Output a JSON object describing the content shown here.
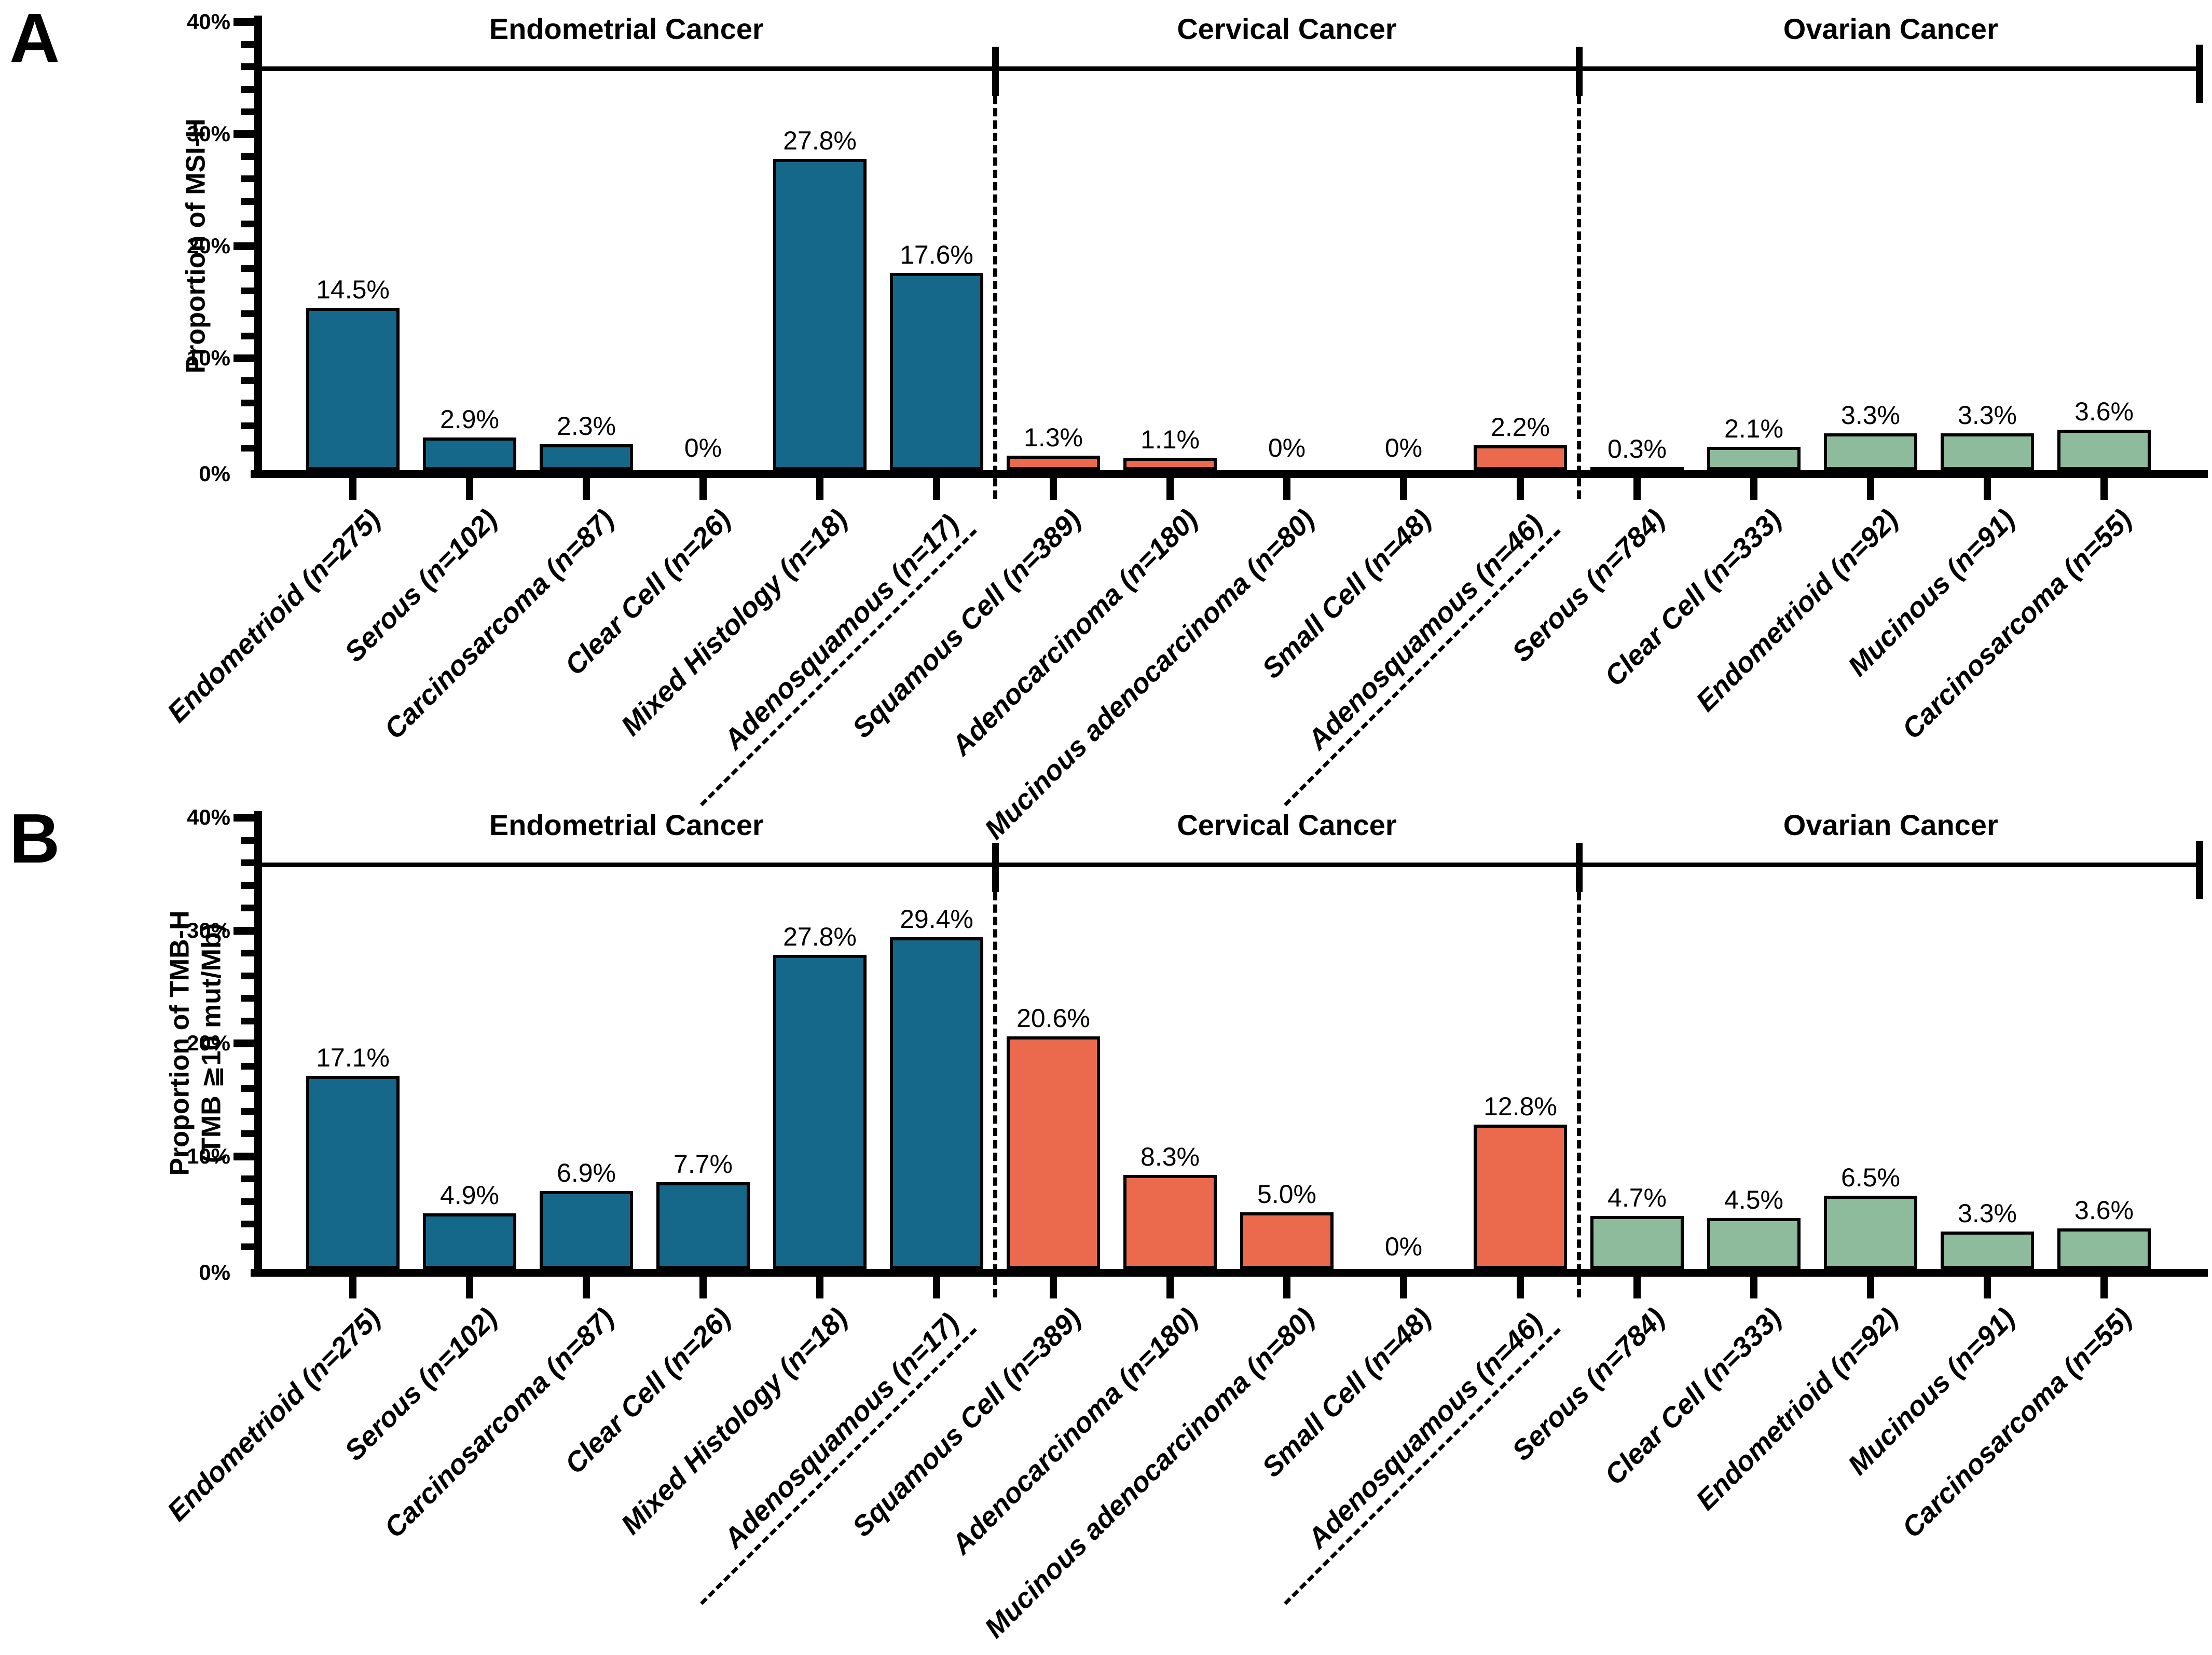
{
  "styles": {
    "background": "#FFFFFF",
    "axis_color": "#000000",
    "bar_colors": {
      "endometrial": "#15688A",
      "cervical": "#EB6A4D",
      "ovarian": "#8DBB9C"
    }
  },
  "chart_data": [
    {
      "panel_label": "A",
      "type": "bar",
      "title": "",
      "xlabel": "",
      "ylabel": "Proportion of MSI-H",
      "ylabel_display": "Proportion of MSI-H",
      "ylim": [
        0,
        40
      ],
      "ytick_labels": [
        "0%",
        "10%",
        "20%",
        "30%",
        "40%"
      ],
      "ytick_values": [
        0,
        10,
        20,
        30,
        40
      ],
      "minor_tick_step": 2,
      "grid": false,
      "legend": "none",
      "group_header_line_at_pct": 36,
      "groups": [
        {
          "name": "Endometrial Cancer",
          "color": "#15688A",
          "bars": [
            {
              "category": "Endometrioid (n=275)",
              "value": 14.5,
              "label": "14.5%"
            },
            {
              "category": "Serous (n=102)",
              "value": 2.9,
              "label": "2.9%"
            },
            {
              "category": "Carcinosarcoma (n=87)",
              "value": 2.3,
              "label": "2.3%"
            },
            {
              "category": "Clear Cell (n=26)",
              "value": 0,
              "label": "0%"
            },
            {
              "category": "Mixed Histology (n=18)",
              "value": 27.8,
              "label": "27.8%"
            },
            {
              "category": "Adenosquamous (n=17)",
              "value": 17.6,
              "label": "17.6%",
              "underlined": true
            }
          ]
        },
        {
          "name": "Cervical Cancer",
          "color": "#EB6A4D",
          "bars": [
            {
              "category": "Squamous Cell (n=389)",
              "value": 1.3,
              "label": "1.3%"
            },
            {
              "category": "Adenocarcinoma (n=180)",
              "value": 1.1,
              "label": "1.1%"
            },
            {
              "category": "Mucinous adenocarcinoma (n=80)",
              "value": 0,
              "label": "0%"
            },
            {
              "category": "Small Cell (n=48)",
              "value": 0,
              "label": "0%"
            },
            {
              "category": "Adenosquamous (n=46)",
              "value": 2.2,
              "label": "2.2%",
              "underlined": true
            }
          ]
        },
        {
          "name": "Ovarian Cancer",
          "color": "#8DBB9C",
          "bars": [
            {
              "category": "Serous (n=784)",
              "value": 0.3,
              "label": "0.3%"
            },
            {
              "category": "Clear Cell (n=333)",
              "value": 2.1,
              "label": "2.1%"
            },
            {
              "category": "Endometrioid (n=92)",
              "value": 3.3,
              "label": "3.3%"
            },
            {
              "category": "Mucinous (n=91)",
              "value": 3.3,
              "label": "3.3%"
            },
            {
              "category": "Carcinosarcoma (n=55)",
              "value": 3.6,
              "label": "3.6%"
            }
          ]
        }
      ]
    },
    {
      "panel_label": "B",
      "type": "bar",
      "title": "",
      "xlabel": "",
      "ylabel": "Proportion of TMB-H (TMB ≧10 mut/Mb)",
      "ylabel_display": "Proportion of TMB-H\n(TMB ≧10 mut/Mb)",
      "ylim": [
        0,
        40
      ],
      "ytick_labels": [
        "0%",
        "10%",
        "20%",
        "30%",
        "40%"
      ],
      "ytick_values": [
        0,
        10,
        20,
        30,
        40
      ],
      "minor_tick_step": 2,
      "grid": false,
      "legend": "none",
      "group_header_line_at_pct": 36,
      "groups": [
        {
          "name": "Endometrial Cancer",
          "color": "#15688A",
          "bars": [
            {
              "category": "Endometrioid (n=275)",
              "value": 17.1,
              "label": "17.1%"
            },
            {
              "category": "Serous (n=102)",
              "value": 4.9,
              "label": "4.9%"
            },
            {
              "category": "Carcinosarcoma (n=87)",
              "value": 6.9,
              "label": "6.9%"
            },
            {
              "category": "Clear Cell (n=26)",
              "value": 7.7,
              "label": "7.7%"
            },
            {
              "category": "Mixed Histology (n=18)",
              "value": 27.8,
              "label": "27.8%"
            },
            {
              "category": "Adenosquamous (n=17)",
              "value": 29.4,
              "label": "29.4%",
              "underlined": true
            }
          ]
        },
        {
          "name": "Cervical Cancer",
          "color": "#EB6A4D",
          "bars": [
            {
              "category": "Squamous Cell (n=389)",
              "value": 20.6,
              "label": "20.6%"
            },
            {
              "category": "Adenocarcinoma (n=180)",
              "value": 8.3,
              "label": "8.3%"
            },
            {
              "category": "Mucinous adenocarcinoma (n=80)",
              "value": 5.0,
              "label": "5.0%"
            },
            {
              "category": "Small Cell (n=48)",
              "value": 0,
              "label": "0%"
            },
            {
              "category": "Adenosquamous (n=46)",
              "value": 12.8,
              "label": "12.8%",
              "underlined": true
            }
          ]
        },
        {
          "name": "Ovarian Cancer",
          "color": "#8DBB9C",
          "bars": [
            {
              "category": "Serous (n=784)",
              "value": 4.7,
              "label": "4.7%"
            },
            {
              "category": "Clear Cell (n=333)",
              "value": 4.5,
              "label": "4.5%"
            },
            {
              "category": "Endometrioid (n=92)",
              "value": 6.5,
              "label": "6.5%"
            },
            {
              "category": "Mucinous (n=91)",
              "value": 3.3,
              "label": "3.3%"
            },
            {
              "category": "Carcinosarcoma (n=55)",
              "value": 3.6,
              "label": "3.6%"
            }
          ]
        }
      ]
    }
  ]
}
